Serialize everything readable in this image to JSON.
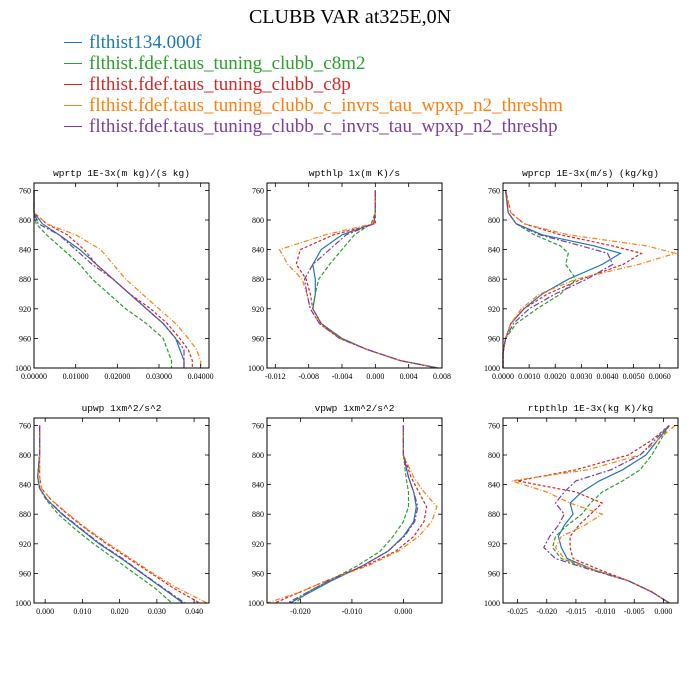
{
  "figure": {
    "title": "CLUBB VAR at325E,0N"
  },
  "legend": [
    {
      "name": "flthist134.000f",
      "color": "#1f77b4"
    },
    {
      "name": "flthist.fdef.taus_tuning_clubb_c8m2",
      "color": "#2ca02c"
    },
    {
      "name": "flthist.fdef.taus_tuning_clubb_c8p",
      "color": "#d62728"
    },
    {
      "name": "flthist.fdef.taus_tuning_clubb_c_invrs_tau_wpxp_n2_threshm",
      "color": "#ff7f0e"
    },
    {
      "name": "flthist.fdef.taus_tuning_clubb_c_invrs_tau_wpxp_n2_threshp",
      "color": "#7b3fa0"
    }
  ],
  "chart_data": [
    {
      "type": "line",
      "title": "wprtp  1E-3x(m kg)/(s kg)",
      "xlim": [
        0,
        0.042
      ],
      "ylim": [
        1000,
        750
      ],
      "ylabel": "",
      "xlabel": "",
      "xticks": [
        0,
        0.01,
        0.02,
        0.03,
        0.04
      ],
      "xtick_labels": [
        "0.00000",
        "0.01000",
        "0.02000",
        "0.03000",
        "0.04000"
      ],
      "yticks": [
        760,
        800,
        840,
        880,
        920,
        960,
        1000
      ],
      "y": [
        760,
        790,
        805,
        820,
        840,
        860,
        880,
        900,
        920,
        940,
        960,
        975,
        990,
        1000
      ],
      "series": [
        {
          "values": [
            0,
            0,
            0.002,
            0.006,
            0.011,
            0.015,
            0.019,
            0.023,
            0.027,
            0.031,
            0.034,
            0.035,
            0.036,
            0.036
          ]
        },
        {
          "values": [
            0,
            0,
            0.0005,
            0.003,
            0.007,
            0.011,
            0.014,
            0.018,
            0.022,
            0.027,
            0.031,
            0.032,
            0.033,
            0.033
          ]
        },
        {
          "values": [
            0,
            0,
            0.003,
            0.008,
            0.012,
            0.015,
            0.019,
            0.023,
            0.028,
            0.032,
            0.035,
            0.037,
            0.038,
            0.038
          ]
        },
        {
          "values": [
            0,
            0,
            0.003,
            0.01,
            0.016,
            0.019,
            0.022,
            0.026,
            0.03,
            0.034,
            0.037,
            0.039,
            0.04,
            0.04
          ]
        },
        {
          "values": [
            0,
            0,
            0.001,
            0.006,
            0.01,
            0.014,
            0.019,
            0.023,
            0.027,
            0.031,
            0.034,
            0.036,
            0.036,
            0.036
          ]
        }
      ]
    },
    {
      "type": "line",
      "title": "wpthlp  1x(m K)/s",
      "xlim": [
        -0.013,
        0.008
      ],
      "ylim": [
        1000,
        750
      ],
      "ylabel": "",
      "xlabel": "",
      "xticks": [
        -0.012,
        -0.008,
        -0.004,
        0,
        0.004,
        0.008
      ],
      "xtick_labels": [
        "-0.012",
        "-0.008",
        "-0.004",
        "0.000",
        "0.004",
        "0.008"
      ],
      "yticks": [
        760,
        800,
        840,
        880,
        920,
        960,
        1000
      ],
      "y": [
        760,
        790,
        805,
        820,
        840,
        860,
        880,
        900,
        920,
        940,
        960,
        975,
        990,
        1000
      ],
      "series": [
        {
          "values": [
            0,
            0,
            -0.0002,
            -0.004,
            -0.0065,
            -0.0075,
            -0.0072,
            -0.0072,
            -0.0075,
            -0.0065,
            -0.004,
            -0.001,
            0.003,
            0.0075
          ]
        },
        {
          "values": [
            0,
            0,
            -0.0005,
            -0.0025,
            -0.004,
            -0.0055,
            -0.0068,
            -0.0072,
            -0.0075,
            -0.0065,
            -0.004,
            -0.001,
            0.003,
            0.0075
          ]
        },
        {
          "values": [
            0,
            0,
            0,
            -0.005,
            -0.009,
            -0.0095,
            -0.0083,
            -0.0078,
            -0.0075,
            -0.0065,
            -0.0042,
            -0.001,
            0.003,
            0.0075
          ]
        },
        {
          "values": [
            0,
            0,
            -0.0003,
            -0.006,
            -0.0115,
            -0.0105,
            -0.0088,
            -0.0082,
            -0.0078,
            -0.0067,
            -0.0043,
            -0.001,
            0.003,
            0.0075
          ]
        },
        {
          "values": [
            0,
            0,
            -0.0002,
            -0.0035,
            -0.0055,
            -0.0075,
            -0.0085,
            -0.0082,
            -0.0078,
            -0.0067,
            -0.0043,
            -0.001,
            0.003,
            0.0075
          ]
        }
      ]
    },
    {
      "type": "line",
      "title": "wprcp  1E-3x(m/s) (kg/kg)",
      "xlim": [
        0,
        0.0067
      ],
      "ylim": [
        1000,
        750
      ],
      "ylabel": "",
      "xlabel": "",
      "xticks": [
        0,
        0.001,
        0.002,
        0.003,
        0.004,
        0.005,
        0.006
      ],
      "xtick_labels": [
        "0.0000",
        "0.0010",
        "0.0020",
        "0.0030",
        "0.0040",
        "0.0050",
        "0.0060"
      ],
      "yticks": [
        760,
        800,
        840,
        880,
        920,
        960,
        1000
      ],
      "y": [
        760,
        790,
        805,
        820,
        835,
        845,
        860,
        880,
        900,
        920,
        940,
        960,
        980,
        1000
      ],
      "series": [
        {
          "values": [
            0.0001,
            0.0002,
            0.0005,
            0.0015,
            0.0035,
            0.0045,
            0.0038,
            0.0025,
            0.0015,
            0.0008,
            0.0003,
            0.0001,
            0,
            0
          ]
        },
        {
          "values": [
            0.0001,
            0.0002,
            0.0005,
            0.0012,
            0.0022,
            0.0025,
            0.0024,
            0.0028,
            0.0022,
            0.0013,
            0.0005,
            0.0001,
            0,
            0
          ]
        },
        {
          "values": [
            0.0001,
            0.0003,
            0.0008,
            0.0022,
            0.0042,
            0.0053,
            0.0046,
            0.003,
            0.0017,
            0.0008,
            0.0003,
            0.0001,
            0,
            0
          ]
        },
        {
          "values": [
            0.0001,
            0.0003,
            0.0008,
            0.0025,
            0.0055,
            0.0066,
            0.0052,
            0.0028,
            0.0014,
            0.0007,
            0.0003,
            0.0001,
            0,
            0
          ]
        },
        {
          "values": [
            0.0001,
            0.0002,
            0.0005,
            0.0014,
            0.003,
            0.004,
            0.0042,
            0.0032,
            0.002,
            0.001,
            0.0004,
            0.0001,
            0,
            0
          ]
        }
      ]
    },
    {
      "type": "line",
      "title": "upwp  1xm^2/s^2",
      "xlim": [
        -0.003,
        0.044
      ],
      "ylim": [
        1000,
        750
      ],
      "ylabel": "",
      "xlabel": "",
      "xticks": [
        0,
        0.01,
        0.02,
        0.03,
        0.04
      ],
      "xtick_labels": [
        "0.000",
        "0.010",
        "0.020",
        "0.030",
        "0.040"
      ],
      "yticks": [
        760,
        800,
        840,
        880,
        920,
        960,
        1000
      ],
      "y": [
        760,
        800,
        830,
        845,
        860,
        880,
        900,
        920,
        940,
        960,
        980,
        1000
      ],
      "series": [
        {
          "values": [
            -0.0015,
            -0.0015,
            -0.002,
            -0.0015,
            0.0005,
            0.0045,
            0.0095,
            0.0145,
            0.0205,
            0.026,
            0.0315,
            0.037
          ]
        },
        {
          "values": [
            -0.0015,
            -0.0015,
            -0.002,
            -0.0015,
            0.0002,
            0.0035,
            0.008,
            0.013,
            0.0185,
            0.024,
            0.0295,
            0.034
          ]
        },
        {
          "values": [
            -0.0015,
            -0.0015,
            -0.0015,
            -0.001,
            0.0015,
            0.006,
            0.011,
            0.0165,
            0.0225,
            0.0285,
            0.0345,
            0.0415
          ]
        },
        {
          "values": [
            -0.0015,
            -0.0015,
            -0.0015,
            -0.001,
            0.0015,
            0.0063,
            0.0113,
            0.017,
            0.023,
            0.029,
            0.0355,
            0.0435
          ]
        },
        {
          "values": [
            -0.0015,
            -0.0015,
            -0.002,
            -0.0015,
            0.0005,
            0.0047,
            0.0097,
            0.0148,
            0.0208,
            0.0262,
            0.0318,
            0.0375
          ]
        }
      ]
    },
    {
      "type": "line",
      "title": "vpwp  1xm^2/s^2",
      "xlim": [
        -0.0265,
        0.0075
      ],
      "ylim": [
        1000,
        750
      ],
      "ylabel": "",
      "xlabel": "",
      "xticks": [
        -0.02,
        -0.01,
        0
      ],
      "xtick_labels": [
        "-0.020",
        "-0.010",
        "0.000"
      ],
      "yticks": [
        760,
        800,
        840,
        880,
        920,
        960,
        1000
      ],
      "y": [
        760,
        800,
        830,
        850,
        870,
        890,
        910,
        930,
        950,
        970,
        985,
        1000
      ],
      "series": [
        {
          "values": [
            0,
            0,
            0.001,
            0.002,
            0.0025,
            0.002,
            0,
            -0.003,
            -0.008,
            -0.014,
            -0.018,
            -0.022
          ]
        },
        {
          "values": [
            0,
            0,
            0.0005,
            0.001,
            0.001,
            0,
            -0.002,
            -0.0045,
            -0.009,
            -0.0145,
            -0.0185,
            -0.021
          ]
        },
        {
          "values": [
            0,
            0,
            0.0015,
            0.003,
            0.0045,
            0.004,
            0.002,
            -0.0015,
            -0.0075,
            -0.015,
            -0.02,
            -0.025
          ]
        },
        {
          "values": [
            0,
            0,
            0.002,
            0.004,
            0.0065,
            0.0055,
            0.003,
            -0.001,
            -0.007,
            -0.015,
            -0.02,
            -0.0265
          ]
        },
        {
          "values": [
            0,
            0,
            0.001,
            0.002,
            0.0028,
            0.0022,
            0.0002,
            -0.003,
            -0.008,
            -0.0145,
            -0.0185,
            -0.0225
          ]
        }
      ]
    },
    {
      "type": "line",
      "title": "rtpthlp  1E-3x(kg K)/kg",
      "xlim": [
        -0.0275,
        0.0025
      ],
      "ylim": [
        1000,
        750
      ],
      "ylabel": "",
      "xlabel": "",
      "xticks": [
        -0.025,
        -0.02,
        -0.015,
        -0.01,
        -0.005,
        0
      ],
      "xtick_labels": [
        "-0.025",
        "-0.020",
        "-0.015",
        "-0.010",
        "-0.005",
        "0.000"
      ],
      "yticks": [
        760,
        800,
        840,
        880,
        920,
        960,
        1000
      ],
      "y": [
        760,
        780,
        800,
        820,
        835,
        850,
        865,
        880,
        895,
        910,
        925,
        940,
        955,
        970,
        985,
        1000
      ],
      "series": [
        {
          "values": [
            0.001,
            -0.001,
            -0.003,
            -0.007,
            -0.011,
            -0.014,
            -0.016,
            -0.0155,
            -0.017,
            -0.018,
            -0.0175,
            -0.0165,
            -0.012,
            -0.006,
            -0.002,
            0.001
          ]
        },
        {
          "values": [
            0.001,
            -0.0005,
            -0.002,
            -0.004,
            -0.007,
            -0.0105,
            -0.0125,
            -0.014,
            -0.0165,
            -0.0185,
            -0.019,
            -0.0175,
            -0.012,
            -0.006,
            -0.002,
            0.001
          ]
        },
        {
          "values": [
            0.001,
            -0.002,
            -0.006,
            -0.015,
            -0.025,
            -0.015,
            -0.0105,
            -0.0125,
            -0.0145,
            -0.016,
            -0.016,
            -0.0155,
            -0.011,
            -0.006,
            -0.002,
            0.001
          ]
        },
        {
          "values": [
            0.002,
            -0.001,
            -0.004,
            -0.013,
            -0.026,
            -0.02,
            -0.016,
            -0.0105,
            -0.0135,
            -0.0175,
            -0.0185,
            -0.017,
            -0.012,
            -0.006,
            -0.002,
            0.001
          ]
        },
        {
          "values": [
            0.001,
            -0.0015,
            -0.004,
            -0.009,
            -0.015,
            -0.017,
            -0.0185,
            -0.017,
            -0.018,
            -0.0195,
            -0.0205,
            -0.0185,
            -0.0125,
            -0.006,
            -0.002,
            0.001
          ]
        }
      ]
    }
  ]
}
